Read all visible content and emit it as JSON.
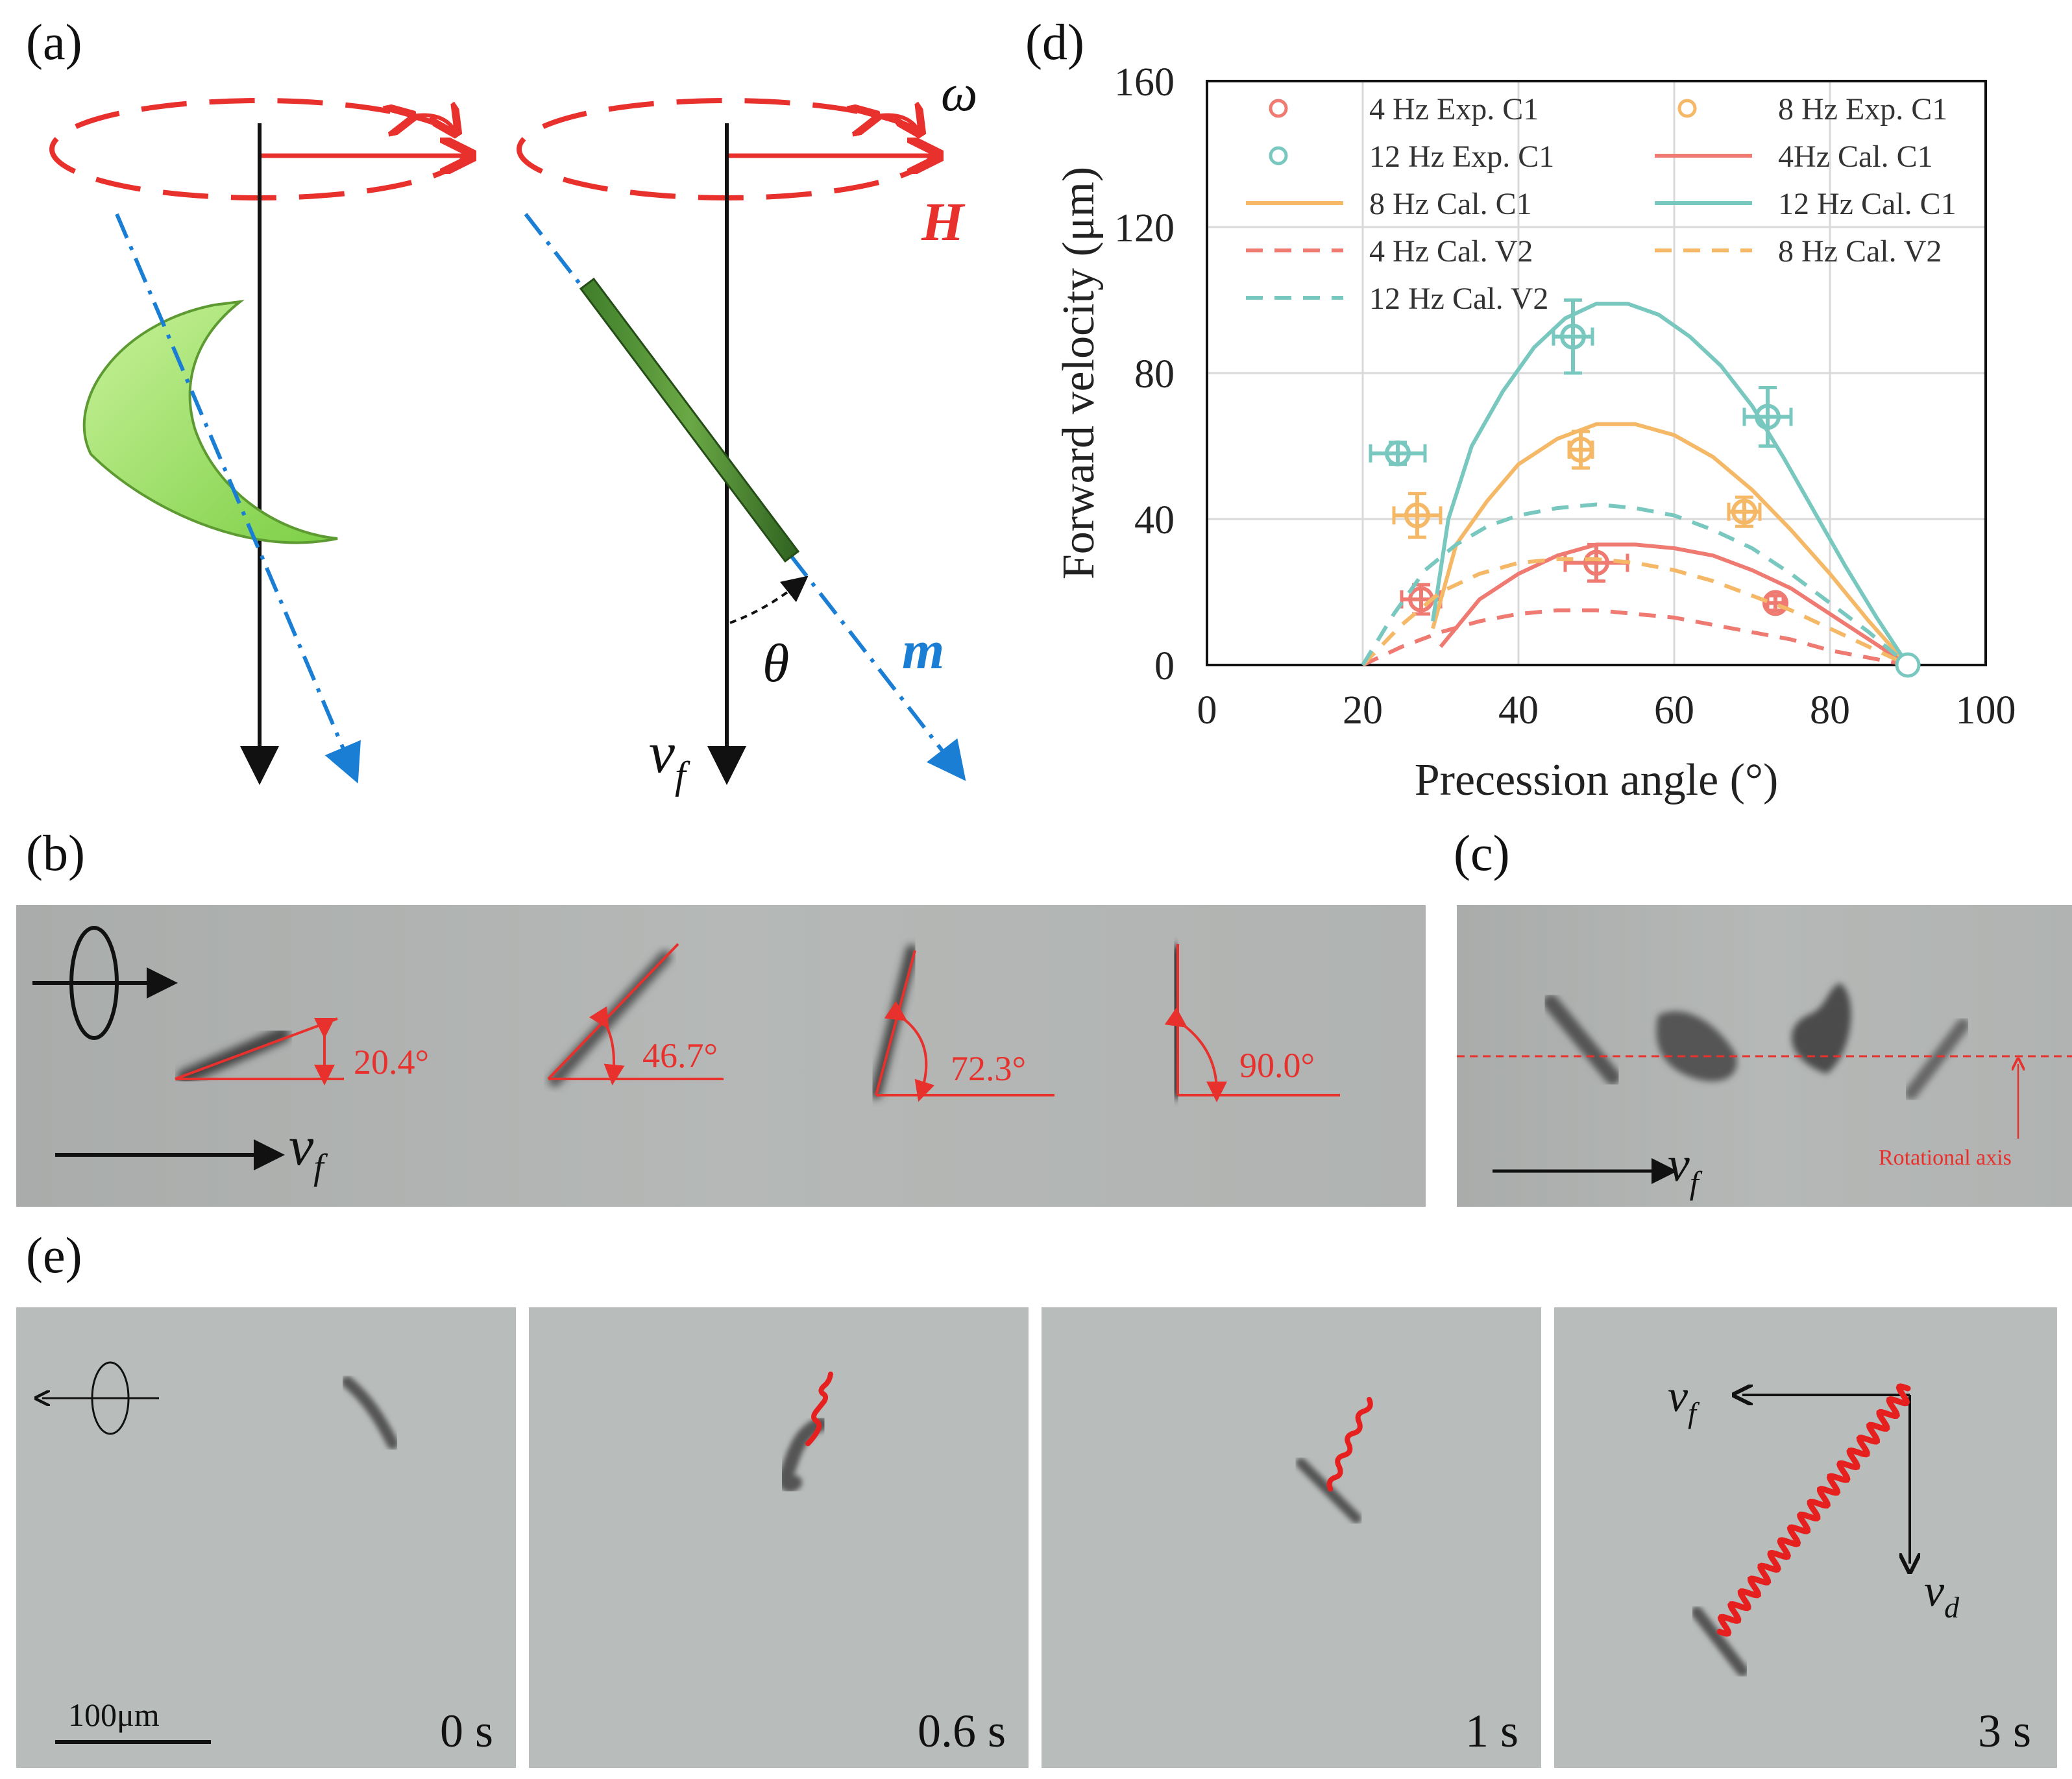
{
  "panel_labels": {
    "a": "(a)",
    "b": "(b)",
    "c": "(c)",
    "d": "(d)",
    "e": "(e)"
  },
  "panel_a": {
    "omega": "ω",
    "H": "H",
    "m": "m",
    "theta": "θ",
    "vf_base": "v",
    "vf_sub": "f"
  },
  "panel_b": {
    "angles": [
      "20.4°",
      "46.7°",
      "72.3°",
      "90.0°"
    ],
    "vf_base": "v",
    "vf_sub": "f"
  },
  "panel_c": {
    "axis_label": "Rotational axis",
    "vf_base": "v",
    "vf_sub": "f"
  },
  "panel_e": {
    "times": [
      "0 s",
      "0.6 s",
      "1 s",
      "3 s"
    ],
    "scale_bar": "100μm",
    "vf_base": "v",
    "vf_sub": "f",
    "vd_base": "v",
    "vd_sub": "d"
  },
  "colors": {
    "red": "#e8312d",
    "blue": "#1a7fd4",
    "c4": "#ee7a72",
    "c8": "#f5b866",
    "c12": "#79c8c0"
  },
  "chart_data": {
    "type": "line",
    "title": "",
    "xlabel": "Precession angle (°)",
    "ylabel": "Forward velocity (μm)",
    "xlim": [
      0,
      100
    ],
    "ylim": [
      0,
      160
    ],
    "xticks": [
      "0",
      "20",
      "40",
      "60",
      "80",
      "100"
    ],
    "yticks": [
      "0",
      "40",
      "80",
      "120",
      "160"
    ],
    "grid": true,
    "legend_position": "top",
    "legend": [
      "4 Hz Exp. C1",
      "8 Hz Exp. C1",
      "12 Hz Exp. C1",
      "4Hz Cal. C1",
      "8 Hz Cal. C1",
      "12 Hz Cal. C1",
      "4 Hz Cal. V2",
      "8 Hz Cal. V2",
      "12 Hz Cal. V2"
    ],
    "series": [
      {
        "name": "4 Hz Exp. C1",
        "kind": "scatter",
        "color": "#ee7a72",
        "x": [
          27.5,
          50,
          73
        ],
        "y": [
          18,
          28,
          17
        ],
        "xerr": [
          2.5,
          4,
          1
        ],
        "yerr": [
          4,
          5,
          2
        ]
      },
      {
        "name": "8 Hz Exp. C1",
        "kind": "scatter",
        "color": "#f5b866",
        "x": [
          27,
          48,
          69
        ],
        "y": [
          41,
          59,
          42
        ],
        "xerr": [
          3,
          1.5,
          2
        ],
        "yerr": [
          6,
          5,
          4
        ]
      },
      {
        "name": "12 Hz Exp. C1",
        "kind": "scatter",
        "color": "#79c8c0",
        "x": [
          24.5,
          47,
          72
        ],
        "y": [
          58,
          90,
          68
        ],
        "xerr": [
          3.5,
          2.5,
          3
        ],
        "yerr": [
          3,
          10,
          8
        ]
      },
      {
        "name": "4Hz Cal. C1",
        "kind": "line",
        "style": "solid",
        "color": "#ee7a72",
        "x": [
          30,
          35,
          40,
          45,
          50,
          55,
          60,
          65,
          70,
          75,
          80,
          85,
          90
        ],
        "y": [
          5,
          18,
          25,
          30,
          33,
          33,
          32,
          30,
          26,
          21,
          14,
          7,
          0
        ]
      },
      {
        "name": "8 Hz Cal. C1",
        "kind": "line",
        "style": "solid",
        "color": "#f5b866",
        "x": [
          29,
          32,
          36,
          40,
          45,
          50,
          55,
          60,
          65,
          70,
          75,
          80,
          85,
          90
        ],
        "y": [
          10,
          33,
          45,
          55,
          62,
          66,
          66,
          63,
          57,
          48,
          37,
          25,
          12,
          0
        ]
      },
      {
        "name": "12 Hz Cal. C1",
        "kind": "line",
        "style": "solid",
        "color": "#79c8c0",
        "x": [
          29,
          31,
          34,
          38,
          42,
          46,
          50,
          54,
          58,
          62,
          66,
          70,
          74,
          78,
          82,
          86,
          90
        ],
        "y": [
          12,
          40,
          60,
          75,
          87,
          95,
          99,
          99,
          96,
          90,
          82,
          71,
          57,
          42,
          27,
          13,
          0
        ]
      },
      {
        "name": "4 Hz Cal. V2",
        "kind": "line",
        "style": "dashed",
        "color": "#ee7a72",
        "x": [
          20,
          25,
          30,
          35,
          40,
          45,
          50,
          55,
          60,
          65,
          70,
          75,
          80,
          85,
          90
        ],
        "y": [
          0,
          5,
          9,
          12,
          14,
          15,
          15,
          14,
          13,
          11,
          9,
          7,
          4,
          2,
          0
        ]
      },
      {
        "name": "8 Hz Cal. V2",
        "kind": "line",
        "style": "dashed",
        "color": "#f5b866",
        "x": [
          20,
          25,
          30,
          35,
          40,
          45,
          50,
          55,
          60,
          65,
          70,
          75,
          80,
          85,
          90
        ],
        "y": [
          0,
          11,
          20,
          25,
          28,
          29,
          29,
          28,
          26,
          23,
          19,
          15,
          10,
          5,
          0
        ]
      },
      {
        "name": "12 Hz Cal. V2",
        "kind": "line",
        "style": "dashed",
        "color": "#79c8c0",
        "x": [
          20,
          24,
          28,
          32,
          36,
          40,
          45,
          50,
          55,
          60,
          65,
          70,
          75,
          80,
          85,
          90
        ],
        "y": [
          0,
          14,
          26,
          33,
          38,
          41,
          43,
          44,
          43,
          41,
          37,
          32,
          25,
          17,
          9,
          0
        ]
      }
    ]
  }
}
